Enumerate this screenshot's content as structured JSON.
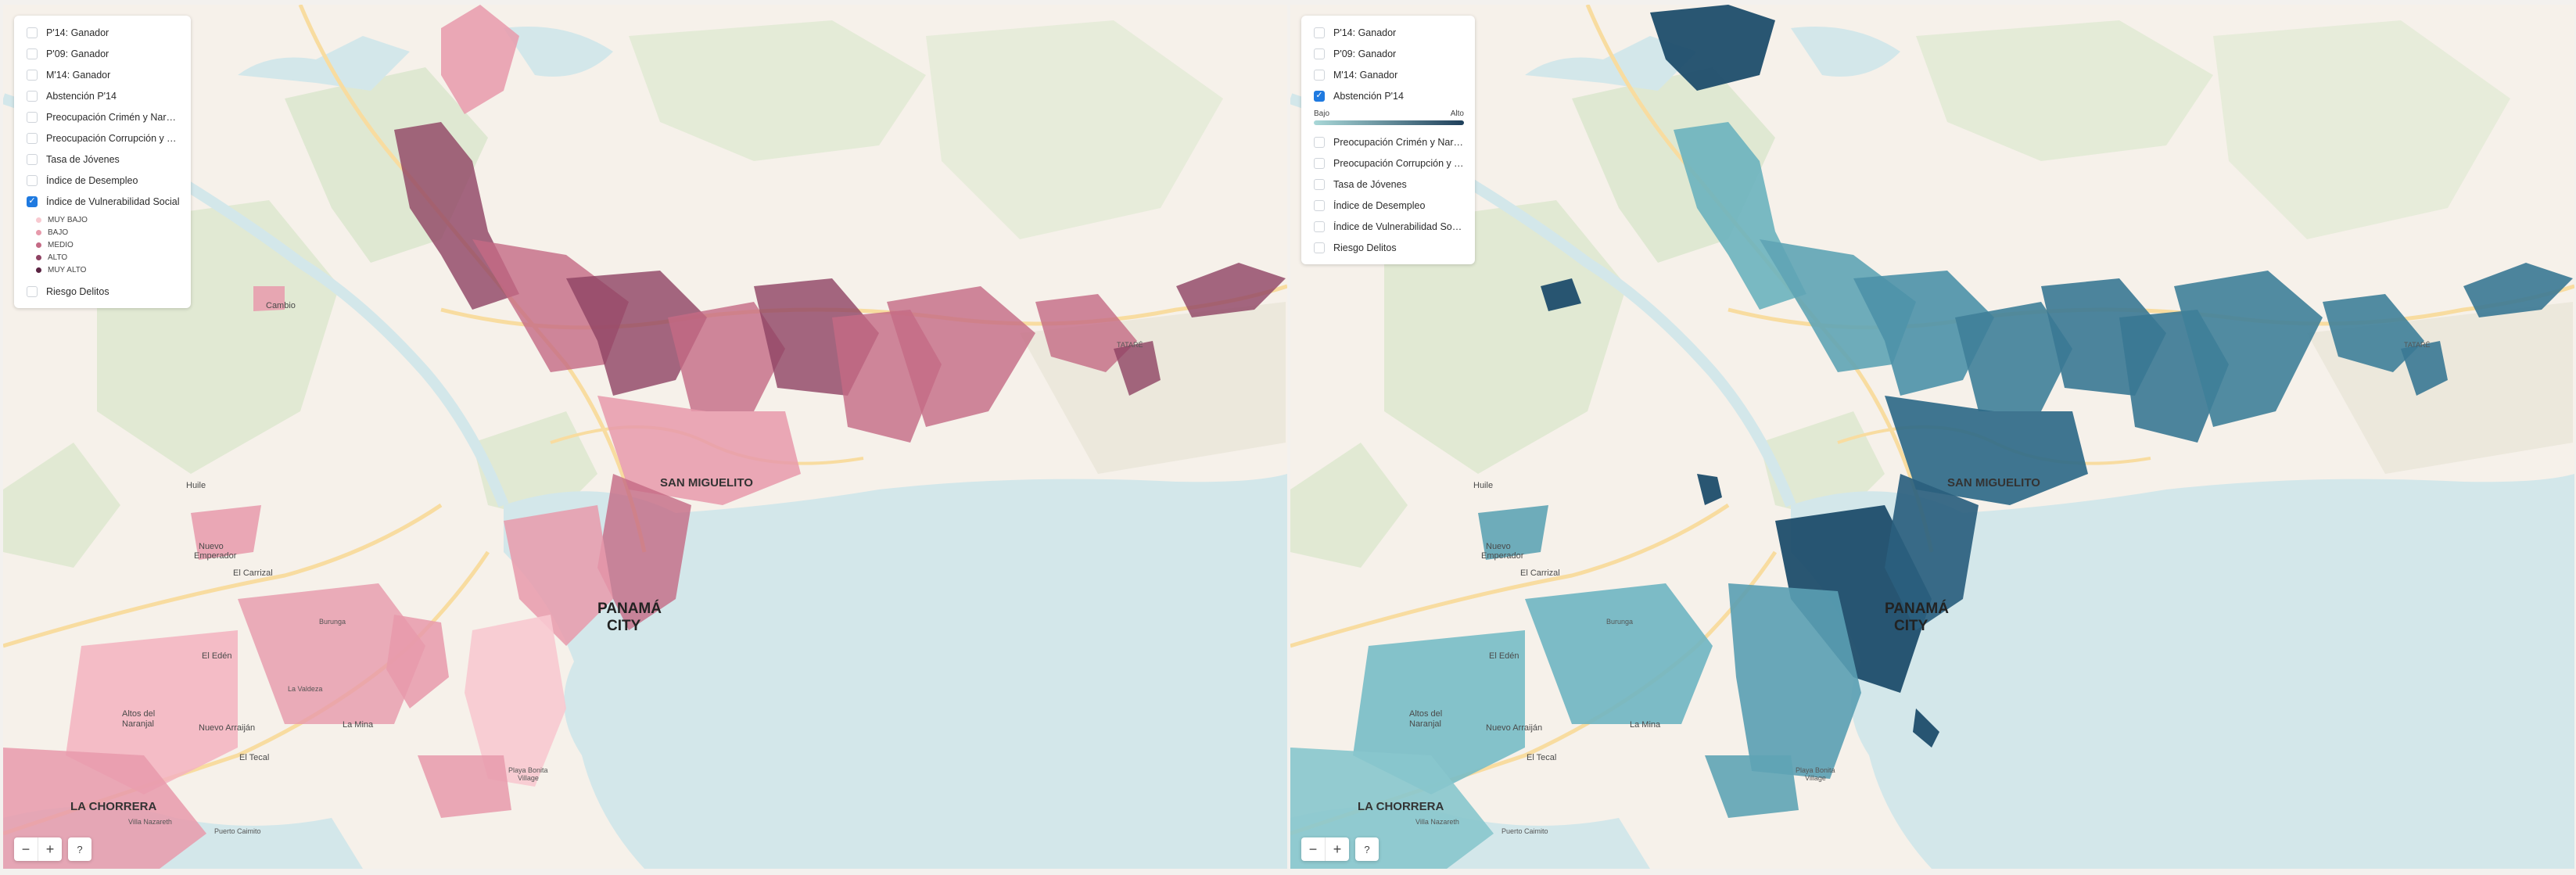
{
  "left_map": {
    "layers": [
      {
        "label": "P'14: Ganador",
        "checked": false
      },
      {
        "label": "P'09: Ganador",
        "checked": false
      },
      {
        "label": "M'14: Ganador",
        "checked": false
      },
      {
        "label": "Abstención P'14",
        "checked": false
      },
      {
        "label": "Preocupación Crimén y Narcotr...",
        "checked": false
      },
      {
        "label": "Preocupación Corrupción y Tra...",
        "checked": false
      },
      {
        "label": "Tasa de Jóvenes",
        "checked": false
      },
      {
        "label": "Índice de Desempleo",
        "checked": false
      },
      {
        "label": "Índice de Vulnerabilidad Social",
        "checked": true
      },
      {
        "label": "Riesgo Delitos",
        "checked": false
      }
    ],
    "legend": [
      {
        "label": "MUY BAJO",
        "color": "#f8c9d0"
      },
      {
        "label": "BAJO",
        "color": "#e79aab"
      },
      {
        "label": "MEDIO",
        "color": "#c46a85"
      },
      {
        "label": "ALTO",
        "color": "#8f4263"
      },
      {
        "label": "MUY ALTO",
        "color": "#5a2342"
      }
    ]
  },
  "right_map": {
    "layers": [
      {
        "label": "P'14: Ganador",
        "checked": false
      },
      {
        "label": "P'09: Ganador",
        "checked": false
      },
      {
        "label": "M'14: Ganador",
        "checked": false
      },
      {
        "label": "Abstención P'14",
        "checked": true
      },
      {
        "label": "Preocupación Crimén y Narcotr...",
        "checked": false
      },
      {
        "label": "Preocupación Corrupción y Tra...",
        "checked": false
      },
      {
        "label": "Tasa de Jóvenes",
        "checked": false
      },
      {
        "label": "Índice de Desempleo",
        "checked": false
      },
      {
        "label": "Índice de Vulnerabilidad Social",
        "checked": false
      },
      {
        "label": "Riesgo Delitos",
        "checked": false
      }
    ],
    "gradient": {
      "low": "Bajo",
      "high": "Alto",
      "from": "#a9d8d8",
      "to": "#1e3f5a"
    }
  },
  "controls": {
    "zoom_out": "−",
    "zoom_in": "+",
    "help": "?"
  },
  "places": {
    "panama_city_1": "PANAMÁ",
    "panama_city_2": "CITY",
    "san_miguelito": "SAN MIGUELITO",
    "la_chorrera": "LA CHORRERA",
    "nuevo_arraijan": "Nuevo Arraiján",
    "el_eden": "El Edén",
    "la_mina": "La Mina",
    "el_tecal": "El Tecal",
    "altos_del_naranjal_1": "Altos del",
    "altos_del_naranjal_2": "Naranjal",
    "huile": "Huile",
    "el_carrizal": "El Carrizal",
    "nuevo_emperador_1": "Nuevo",
    "nuevo_emperador_2": "Emperador",
    "cambio": "Cambio",
    "tatare": "TATARÉ",
    "puerto_caimito": "Puerto Caimito",
    "villa_nazareth": "Villa Nazareth",
    "playa_bonita_1": "Playa Bonita",
    "playa_bonita_2": "Village",
    "burunga": "Burunga",
    "la_valdeza": "La Valdeza"
  },
  "colors": {
    "water": "#d3e7ea",
    "land": "#f6f1ea",
    "park": "#dfe8d2",
    "road": "#f8dca0"
  }
}
